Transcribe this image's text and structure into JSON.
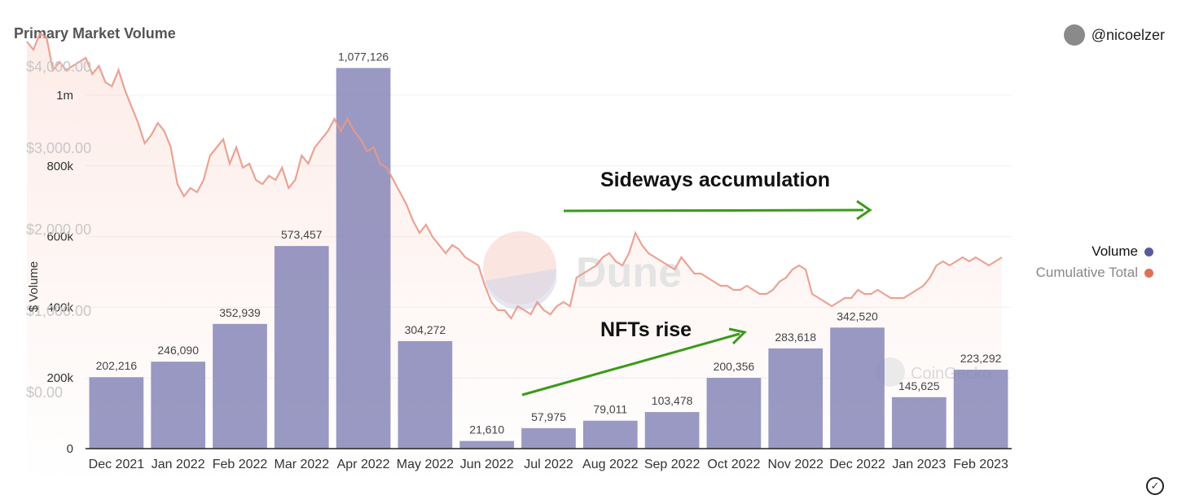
{
  "header": {
    "title": "Primary Market Volume",
    "username": "@nicoelzer"
  },
  "legend": [
    {
      "label": "Volume",
      "color": "#5b5b9b"
    },
    {
      "label": "Cumulative Total",
      "color": "#e07055"
    }
  ],
  "watermarks": {
    "dune": "Dune",
    "coingecko": "CoinGecko"
  },
  "annotations": {
    "sideways": "Sideways accumulation",
    "nfts": "NFTs rise"
  },
  "chart_data": {
    "type": "bar",
    "categories": [
      "Dec 2021",
      "Jan 2022",
      "Feb 2022",
      "Mar 2022",
      "Apr 2022",
      "May 2022",
      "Jun 2022",
      "Jul 2022",
      "Aug 2022",
      "Sep 2022",
      "Oct 2022",
      "Nov 2022",
      "Dec 2022",
      "Jan 2023",
      "Feb 2023"
    ],
    "series": [
      {
        "name": "Volume",
        "values": [
          202216,
          246090,
          352939,
          573457,
          1077126,
          304272,
          21610,
          57975,
          79011,
          103478,
          200356,
          283618,
          342520,
          145625,
          223292
        ],
        "value_labels": [
          "202,216",
          "246,090",
          "352,939",
          "573,457",
          "1,077,126",
          "304,272",
          "21,610",
          "57,975",
          "79,011",
          "103,478",
          "200,356",
          "283,618",
          "342,520",
          "145,625",
          "223,292"
        ]
      }
    ],
    "ylabel": "$ Volume",
    "ylim": [
      0,
      1100000
    ],
    "yticks": [
      0,
      200000,
      400000,
      600000,
      800000,
      1000000
    ],
    "ytick_labels": [
      "0",
      "200k",
      "400k",
      "600k",
      "800k",
      "1m"
    ],
    "overlay_price_axis": {
      "ticks": [
        0,
        1000,
        2000,
        3000,
        4000
      ],
      "tick_labels": [
        "$0.00",
        "$1,000.00",
        "$2,000.00",
        "$3,000.00",
        "$4,000.00"
      ],
      "ylim": [
        0,
        4000
      ],
      "line": [
        4300,
        4200,
        4400,
        4350,
        3950,
        4050,
        3950,
        4000,
        4050,
        4100,
        3900,
        4000,
        3800,
        3750,
        3950,
        3700,
        3500,
        3300,
        3050,
        3150,
        3300,
        3200,
        3000,
        2550,
        2400,
        2500,
        2450,
        2600,
        2900,
        3000,
        3100,
        2800,
        3000,
        2750,
        2800,
        2600,
        2550,
        2650,
        2600,
        2750,
        2500,
        2600,
        2900,
        2800,
        3000,
        3100,
        3200,
        3350,
        3200,
        3350,
        3200,
        3100,
        2950,
        3000,
        2800,
        2750,
        2600,
        2450,
        2300,
        2100,
        1950,
        2050,
        1900,
        1800,
        1700,
        1800,
        1750,
        1650,
        1600,
        1550,
        1300,
        1100,
        1000,
        1000,
        900,
        1050,
        1000,
        950,
        1100,
        1000,
        950,
        1050,
        1100,
        1050,
        1400,
        1450,
        1500,
        1550,
        1650,
        1700,
        1600,
        1550,
        1700,
        1950,
        1800,
        1700,
        1650,
        1600,
        1550,
        1500,
        1650,
        1550,
        1450,
        1450,
        1400,
        1350,
        1300,
        1300,
        1250,
        1250,
        1300,
        1250,
        1200,
        1200,
        1250,
        1350,
        1400,
        1500,
        1550,
        1500,
        1200,
        1150,
        1100,
        1050,
        1100,
        1150,
        1150,
        1250,
        1200,
        1200,
        1250,
        1200,
        1150,
        1150,
        1150,
        1200,
        1250,
        1300,
        1400,
        1550,
        1600,
        1550,
        1600,
        1650,
        1600,
        1650,
        1600,
        1550,
        1600,
        1650
      ]
    }
  }
}
